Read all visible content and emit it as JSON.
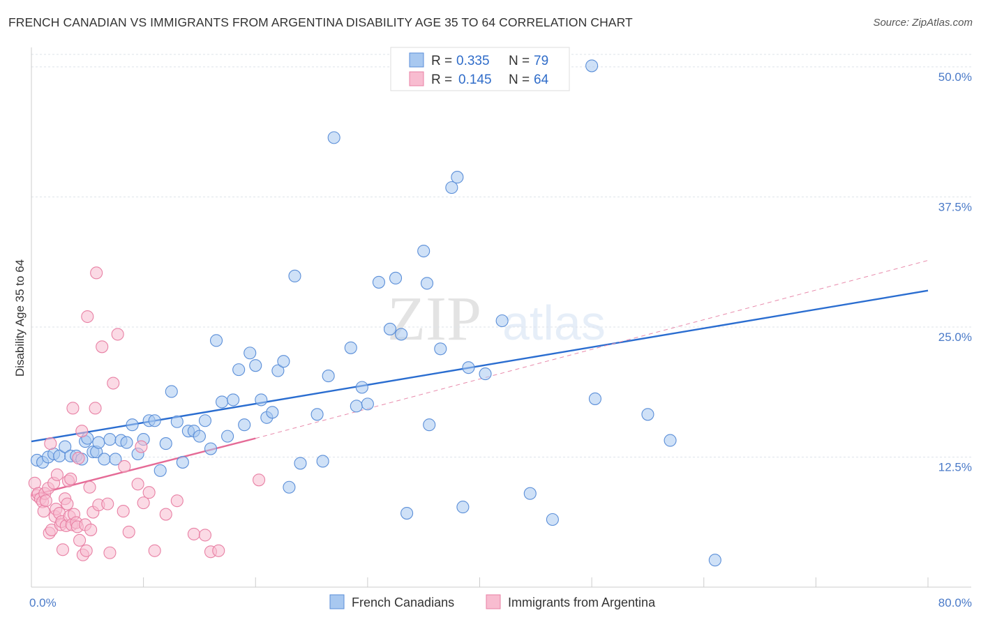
{
  "title": "FRENCH CANADIAN VS IMMIGRANTS FROM ARGENTINA DISABILITY AGE 35 TO 64 CORRELATION CHART",
  "source": "Source: ZipAtlas.com",
  "watermark": {
    "zip": "ZIP",
    "atlas": "atlas"
  },
  "chart_data": {
    "type": "scatter",
    "title": "FRENCH CANADIAN VS IMMIGRANTS FROM ARGENTINA DISABILITY AGE 35 TO 64 CORRELATION CHART",
    "xlabel": "",
    "ylabel": "Disability Age 35 to 64",
    "xlim": [
      0,
      80
    ],
    "ylim": [
      0,
      50
    ],
    "x_tick_labels": [
      "0.0%",
      "80.0%"
    ],
    "y_ticks": [
      {
        "value": 12.5,
        "label": "12.5%"
      },
      {
        "value": 25.0,
        "label": "25.0%"
      },
      {
        "value": 37.5,
        "label": "37.5%"
      },
      {
        "value": 50.0,
        "label": "50.0%"
      }
    ],
    "legend_position": "top-center",
    "stats_legend": [
      {
        "r_label": "R =",
        "r_value": "0.335",
        "n_label": "N =",
        "n_value": "79",
        "color": "#a8c8f0",
        "edge": "#5a8ed8"
      },
      {
        "r_label": "R =",
        "r_value": "0.145",
        "n_label": "N =",
        "n_value": "64",
        "color": "#f8bcd0",
        "edge": "#e880a4"
      }
    ],
    "series": [
      {
        "name": "French Canadians",
        "color": "#a8c8f0",
        "edge": "#5a8ed8",
        "trend": {
          "x0": 0,
          "y0": 14.0,
          "x1": 80,
          "y1": 28.5,
          "color": "#2a6dd0",
          "dashed": false
        },
        "points": [
          [
            0.5,
            12.2
          ],
          [
            1.0,
            12.0
          ],
          [
            1.5,
            12.5
          ],
          [
            2.0,
            12.8
          ],
          [
            2.5,
            12.6
          ],
          [
            3.0,
            13.5
          ],
          [
            3.5,
            12.6
          ],
          [
            4.0,
            12.6
          ],
          [
            4.5,
            12.3
          ],
          [
            4.8,
            14.0
          ],
          [
            5.0,
            14.3
          ],
          [
            5.5,
            13.0
          ],
          [
            5.8,
            13.0
          ],
          [
            6.0,
            13.9
          ],
          [
            6.5,
            12.3
          ],
          [
            7.0,
            14.2
          ],
          [
            7.5,
            12.3
          ],
          [
            8.0,
            14.1
          ],
          [
            8.5,
            13.9
          ],
          [
            9.0,
            15.6
          ],
          [
            9.5,
            12.8
          ],
          [
            10.0,
            14.2
          ],
          [
            10.5,
            16.0
          ],
          [
            11.0,
            16.0
          ],
          [
            11.5,
            11.2
          ],
          [
            12.0,
            13.8
          ],
          [
            12.5,
            18.8
          ],
          [
            13.0,
            15.9
          ],
          [
            13.5,
            12.0
          ],
          [
            14.0,
            15.0
          ],
          [
            14.5,
            15.0
          ],
          [
            15.0,
            14.5
          ],
          [
            15.5,
            16.0
          ],
          [
            16.0,
            13.3
          ],
          [
            16.5,
            23.7
          ],
          [
            17.0,
            17.8
          ],
          [
            17.5,
            14.5
          ],
          [
            18.0,
            18.0
          ],
          [
            18.5,
            20.9
          ],
          [
            19.0,
            15.6
          ],
          [
            19.5,
            22.5
          ],
          [
            20.0,
            21.3
          ],
          [
            20.5,
            18.0
          ],
          [
            21.0,
            16.3
          ],
          [
            21.5,
            16.8
          ],
          [
            22.0,
            20.8
          ],
          [
            22.5,
            21.7
          ],
          [
            23.0,
            9.6
          ],
          [
            23.5,
            29.9
          ],
          [
            24.0,
            11.9
          ],
          [
            25.5,
            16.6
          ],
          [
            26.0,
            12.1
          ],
          [
            26.5,
            20.3
          ],
          [
            27.0,
            43.2
          ],
          [
            28.5,
            23.0
          ],
          [
            29.0,
            17.4
          ],
          [
            29.5,
            19.2
          ],
          [
            30.0,
            17.6
          ],
          [
            31.0,
            29.3
          ],
          [
            32.0,
            24.8
          ],
          [
            32.5,
            29.7
          ],
          [
            33.0,
            24.3
          ],
          [
            33.5,
            7.1
          ],
          [
            35.0,
            32.3
          ],
          [
            35.3,
            29.2
          ],
          [
            35.5,
            15.6
          ],
          [
            36.5,
            22.9
          ],
          [
            37.5,
            38.4
          ],
          [
            38.0,
            39.4
          ],
          [
            38.5,
            7.7
          ],
          [
            39.0,
            21.1
          ],
          [
            40.5,
            20.5
          ],
          [
            42.0,
            25.6
          ],
          [
            44.5,
            9.0
          ],
          [
            46.5,
            6.5
          ],
          [
            50.0,
            50.1
          ],
          [
            50.3,
            18.1
          ],
          [
            55.0,
            16.6
          ],
          [
            57.0,
            14.1
          ],
          [
            61.0,
            2.6
          ]
        ]
      },
      {
        "name": "Immigrants from Argentina",
        "color": "#f8bcd0",
        "edge": "#e880a4",
        "trend": {
          "x0": 0,
          "y0": 8.8,
          "x1": 20,
          "y1": 14.3,
          "color": "#e56a96",
          "dashed": false
        },
        "trend_extended": {
          "x0": 20,
          "y0": 14.3,
          "x1": 80,
          "y1": 31.4,
          "color": "#e88aab",
          "dashed": true
        },
        "points": [
          [
            0.3,
            10.0
          ],
          [
            0.5,
            8.8
          ],
          [
            0.6,
            9.0
          ],
          [
            0.8,
            8.5
          ],
          [
            1.0,
            8.2
          ],
          [
            1.1,
            7.3
          ],
          [
            1.2,
            9.0
          ],
          [
            1.3,
            8.3
          ],
          [
            1.5,
            9.5
          ],
          [
            1.6,
            5.2
          ],
          [
            1.7,
            13.8
          ],
          [
            1.8,
            5.5
          ],
          [
            2.0,
            10.0
          ],
          [
            2.1,
            6.8
          ],
          [
            2.2,
            7.5
          ],
          [
            2.3,
            10.8
          ],
          [
            2.5,
            7.1
          ],
          [
            2.6,
            6.0
          ],
          [
            2.7,
            6.3
          ],
          [
            2.8,
            3.6
          ],
          [
            3.0,
            8.5
          ],
          [
            3.1,
            5.9
          ],
          [
            3.2,
            8.0
          ],
          [
            3.3,
            10.2
          ],
          [
            3.4,
            6.8
          ],
          [
            3.5,
            10.4
          ],
          [
            3.6,
            6.0
          ],
          [
            3.7,
            17.2
          ],
          [
            3.8,
            7.0
          ],
          [
            4.0,
            6.2
          ],
          [
            4.1,
            5.8
          ],
          [
            4.2,
            12.4
          ],
          [
            4.3,
            4.5
          ],
          [
            4.5,
            15.0
          ],
          [
            4.6,
            3.1
          ],
          [
            4.8,
            6.0
          ],
          [
            4.9,
            3.5
          ],
          [
            5.0,
            26.0
          ],
          [
            5.2,
            9.6
          ],
          [
            5.3,
            5.5
          ],
          [
            5.5,
            7.2
          ],
          [
            5.7,
            17.2
          ],
          [
            5.8,
            30.2
          ],
          [
            6.0,
            7.9
          ],
          [
            6.3,
            23.1
          ],
          [
            6.8,
            8.0
          ],
          [
            7.0,
            3.3
          ],
          [
            7.3,
            19.6
          ],
          [
            7.7,
            24.3
          ],
          [
            8.2,
            7.3
          ],
          [
            8.3,
            11.6
          ],
          [
            8.7,
            5.3
          ],
          [
            9.5,
            9.9
          ],
          [
            9.8,
            13.5
          ],
          [
            10.0,
            8.1
          ],
          [
            10.5,
            9.1
          ],
          [
            11.0,
            3.5
          ],
          [
            12.0,
            7.0
          ],
          [
            13.0,
            8.3
          ],
          [
            14.5,
            5.1
          ],
          [
            15.5,
            5.0
          ],
          [
            16.0,
            3.4
          ],
          [
            16.7,
            3.5
          ],
          [
            20.3,
            10.3
          ]
        ]
      }
    ]
  },
  "bottom_legend": [
    {
      "label": "French Canadians"
    },
    {
      "label": "Immigrants from Argentina"
    }
  ]
}
